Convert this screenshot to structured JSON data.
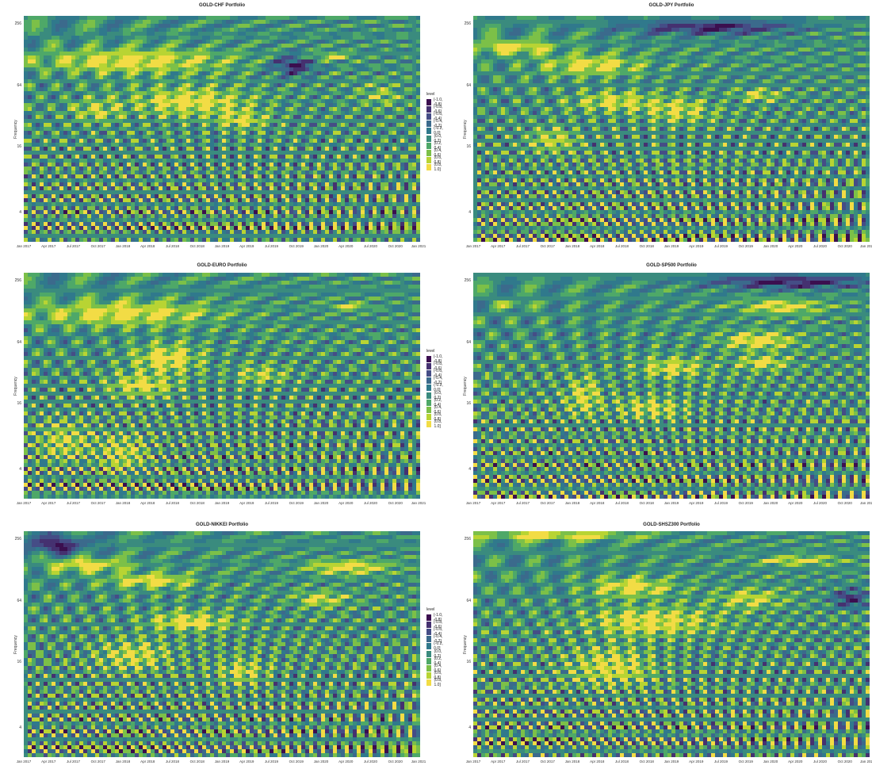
{
  "chart_data": [
    {
      "type": "heatmap",
      "title": "GOLD-CHF Portfolio",
      "ylabel": "Frequency",
      "xlabel": "",
      "y_ticks": [
        "256",
        "64",
        "16",
        "4"
      ],
      "x_ticks": [
        "Jan 2017",
        "Apr 2017",
        "Jul 2017",
        "Oct 2017",
        "Jan 2018",
        "Apr 2018",
        "Jul 2018",
        "Oct 2018",
        "Jan 2019",
        "Apr 2019",
        "Jul 2019",
        "Oct 2019",
        "Jan 2020",
        "Apr 2020",
        "Jul 2020",
        "Oct 2020",
        "Jan 2021"
      ],
      "blobs": [
        {
          "x": 0.28,
          "y": 0.2,
          "rx": 0.23,
          "ry": 0.05,
          "v": 0.9
        },
        {
          "x": 0.42,
          "y": 0.38,
          "rx": 0.14,
          "ry": 0.06,
          "v": 0.9
        },
        {
          "x": 0.55,
          "y": 0.46,
          "rx": 0.06,
          "ry": 0.04,
          "v": 0.7
        },
        {
          "x": 0.78,
          "y": 0.18,
          "rx": 0.05,
          "ry": 0.015,
          "v": 0.7
        },
        {
          "x": 0.68,
          "y": 0.22,
          "rx": 0.05,
          "ry": 0.04,
          "v": -0.9
        },
        {
          "x": 0.18,
          "y": 0.42,
          "rx": 0.06,
          "ry": 0.05,
          "v": 0.6
        },
        {
          "x": 0.9,
          "y": 0.35,
          "rx": 0.05,
          "ry": 0.05,
          "v": 0.5
        }
      ]
    },
    {
      "type": "heatmap",
      "title": "GOLD-JPY Portfolio",
      "ylabel": "Frequency",
      "xlabel": "",
      "y_ticks": [
        "256",
        "64",
        "16",
        "4"
      ],
      "x_ticks": [
        "Jan 2017",
        "Apr 2017",
        "Jul 2017",
        "Oct 2017",
        "Jan 2018",
        "Apr 2018",
        "Jul 2018",
        "Oct 2018",
        "Jan 2019",
        "Apr 2019",
        "Jul 2019",
        "Oct 2019",
        "Jan 2020",
        "Apr 2020",
        "Jul 2020",
        "Oct 2020",
        "Jan 202"
      ],
      "blobs": [
        {
          "x": 0.1,
          "y": 0.14,
          "rx": 0.1,
          "ry": 0.03,
          "v": 0.9
        },
        {
          "x": 0.3,
          "y": 0.22,
          "rx": 0.12,
          "ry": 0.04,
          "v": 0.9
        },
        {
          "x": 0.36,
          "y": 0.38,
          "rx": 0.1,
          "ry": 0.04,
          "v": 0.8
        },
        {
          "x": 0.52,
          "y": 0.42,
          "rx": 0.08,
          "ry": 0.05,
          "v": 0.7
        },
        {
          "x": 0.2,
          "y": 0.55,
          "rx": 0.06,
          "ry": 0.05,
          "v": 0.7
        },
        {
          "x": 0.6,
          "y": 0.05,
          "rx": 0.2,
          "ry": 0.03,
          "v": -0.9
        },
        {
          "x": 0.72,
          "y": 0.35,
          "rx": 0.05,
          "ry": 0.03,
          "v": 0.6
        }
      ]
    },
    {
      "type": "heatmap",
      "title": "GOLD-EURO Portfolio",
      "ylabel": "Frequency",
      "xlabel": "",
      "y_ticks": [
        "256",
        "64",
        "16",
        "4"
      ],
      "x_ticks": [
        "Jan 2017",
        "Apr 2017",
        "Jul 2017",
        "Oct 2017",
        "Jan 2018",
        "Apr 2018",
        "Jul 2018",
        "Oct 2018",
        "Jan 2019",
        "Apr 2019",
        "Jul 2019",
        "Oct 2019",
        "Jan 2020",
        "Apr 2020",
        "Jul 2020",
        "Oct 2020",
        "Jan 2021"
      ],
      "blobs": [
        {
          "x": 0.25,
          "y": 0.18,
          "rx": 0.22,
          "ry": 0.05,
          "v": 0.9
        },
        {
          "x": 0.36,
          "y": 0.38,
          "rx": 0.08,
          "ry": 0.06,
          "v": 0.9
        },
        {
          "x": 0.3,
          "y": 0.5,
          "rx": 0.08,
          "ry": 0.05,
          "v": 0.8
        },
        {
          "x": 0.82,
          "y": 0.15,
          "rx": 0.05,
          "ry": 0.015,
          "v": 0.7
        },
        {
          "x": 0.6,
          "y": 0.45,
          "rx": 0.06,
          "ry": 0.04,
          "v": 0.6
        },
        {
          "x": 0.1,
          "y": 0.75,
          "rx": 0.06,
          "ry": 0.08,
          "v": 0.7
        },
        {
          "x": 0.25,
          "y": 0.8,
          "rx": 0.06,
          "ry": 0.08,
          "v": 0.7
        }
      ]
    },
    {
      "type": "heatmap",
      "title": "GOLD-SP500 Portfolio",
      "ylabel": "Frequency",
      "xlabel": "",
      "y_ticks": [
        "256",
        "64",
        "16",
        "4"
      ],
      "x_ticks": [
        "Jan 2017",
        "Apr 2017",
        "Jul 2017",
        "Oct 2017",
        "Jan 2018",
        "Apr 2018",
        "Jul 2018",
        "Oct 2018",
        "Jan 2019",
        "Apr 2019",
        "Jul 2019",
        "Oct 2019",
        "Jan 2020",
        "Apr 2020",
        "Jul 2020",
        "Oct 2020",
        "Jan 202"
      ],
      "blobs": [
        {
          "x": 0.78,
          "y": 0.15,
          "rx": 0.1,
          "ry": 0.03,
          "v": 0.9
        },
        {
          "x": 0.72,
          "y": 0.3,
          "rx": 0.09,
          "ry": 0.04,
          "v": 0.9
        },
        {
          "x": 0.73,
          "y": 0.4,
          "rx": 0.06,
          "ry": 0.03,
          "v": 0.8
        },
        {
          "x": 0.28,
          "y": 0.55,
          "rx": 0.04,
          "ry": 0.08,
          "v": 0.8
        },
        {
          "x": 0.5,
          "y": 0.42,
          "rx": 0.08,
          "ry": 0.04,
          "v": 0.8
        },
        {
          "x": 0.45,
          "y": 0.6,
          "rx": 0.08,
          "ry": 0.05,
          "v": 0.7
        },
        {
          "x": 0.8,
          "y": 0.04,
          "rx": 0.2,
          "ry": 0.03,
          "v": -0.9
        },
        {
          "x": 0.1,
          "y": 0.14,
          "rx": 0.04,
          "ry": 0.015,
          "v": 0.7
        }
      ]
    },
    {
      "type": "heatmap",
      "title": "GOLD-NIKKEI Portfolio",
      "ylabel": "Frequency",
      "xlabel": "",
      "y_ticks": [
        "256",
        "64",
        "16",
        "4"
      ],
      "x_ticks": [
        "Jan 2017",
        "Apr 2017",
        "Jul 2017",
        "Oct 2017",
        "Jan 2018",
        "Apr 2018",
        "Jul 2018",
        "Oct 2018",
        "Jan 2019",
        "Apr 2019",
        "Jul 2019",
        "Oct 2019",
        "Jan 2020",
        "Apr 2020",
        "Jul 2020",
        "Oct 2020",
        "Jan 2021"
      ],
      "blobs": [
        {
          "x": 0.16,
          "y": 0.15,
          "rx": 0.1,
          "ry": 0.03,
          "v": 0.9
        },
        {
          "x": 0.32,
          "y": 0.22,
          "rx": 0.1,
          "ry": 0.03,
          "v": 0.9
        },
        {
          "x": 0.82,
          "y": 0.16,
          "rx": 0.1,
          "ry": 0.03,
          "v": 0.9
        },
        {
          "x": 0.75,
          "y": 0.3,
          "rx": 0.06,
          "ry": 0.03,
          "v": 0.8
        },
        {
          "x": 0.42,
          "y": 0.4,
          "rx": 0.1,
          "ry": 0.04,
          "v": 0.9
        },
        {
          "x": 0.28,
          "y": 0.55,
          "rx": 0.08,
          "ry": 0.06,
          "v": 0.8
        },
        {
          "x": 0.08,
          "y": 0.06,
          "rx": 0.08,
          "ry": 0.04,
          "v": -0.9
        },
        {
          "x": 0.55,
          "y": 0.62,
          "rx": 0.06,
          "ry": 0.05,
          "v": 0.7
        }
      ]
    },
    {
      "type": "heatmap",
      "title": "GOLD-SHSZ300 Portfolio",
      "ylabel": "Frequency",
      "xlabel": "",
      "y_ticks": [
        "256",
        "64",
        "16",
        "4"
      ],
      "x_ticks": [
        "Jan 2017",
        "Apr 2017",
        "Jul 2017",
        "Oct 2017",
        "Jan 2018",
        "Apr 2018",
        "Jul 2018",
        "Oct 2018",
        "Jan 2019",
        "Apr 2019",
        "Jul 2019",
        "Oct 2019",
        "Jan 2020",
        "Apr 2020",
        "Jul 2020",
        "Oct 2020",
        "Jan 202"
      ],
      "blobs": [
        {
          "x": 0.2,
          "y": 0.02,
          "rx": 0.2,
          "ry": 0.02,
          "v": 0.9
        },
        {
          "x": 0.4,
          "y": 0.25,
          "rx": 0.1,
          "ry": 0.04,
          "v": 0.9
        },
        {
          "x": 0.45,
          "y": 0.4,
          "rx": 0.15,
          "ry": 0.06,
          "v": 0.9
        },
        {
          "x": 0.35,
          "y": 0.6,
          "rx": 0.1,
          "ry": 0.08,
          "v": 0.8
        },
        {
          "x": 0.82,
          "y": 0.13,
          "rx": 0.1,
          "ry": 0.02,
          "v": 0.8
        },
        {
          "x": 0.7,
          "y": 0.3,
          "rx": 0.08,
          "ry": 0.04,
          "v": 0.7
        },
        {
          "x": 0.95,
          "y": 0.3,
          "rx": 0.04,
          "ry": 0.04,
          "v": -0.8
        }
      ]
    }
  ],
  "legend": {
    "title": "level",
    "items": [
      {
        "label": "(-1.0, -0.8]",
        "color": "#3b0f4f"
      },
      {
        "label": "(-0.8, -0.6]",
        "color": "#453170"
      },
      {
        "label": "(-0.6, -0.4]",
        "color": "#454d86"
      },
      {
        "label": "(-0.4, -0.2]",
        "color": "#3b6a8c"
      },
      {
        "label": "(-0.2, 0.0]",
        "color": "#30798c"
      },
      {
        "label": "(0.0, 0.2]",
        "color": "#3a8b7e"
      },
      {
        "label": "(0.2, 0.4]",
        "color": "#4ea868"
      },
      {
        "label": "(0.4, 0.6]",
        "color": "#7cc048"
      },
      {
        "label": "(0.6, 0.8]",
        "color": "#b8d433"
      },
      {
        "label": "(0.8, 1.0]",
        "color": "#f2dc45"
      }
    ]
  }
}
